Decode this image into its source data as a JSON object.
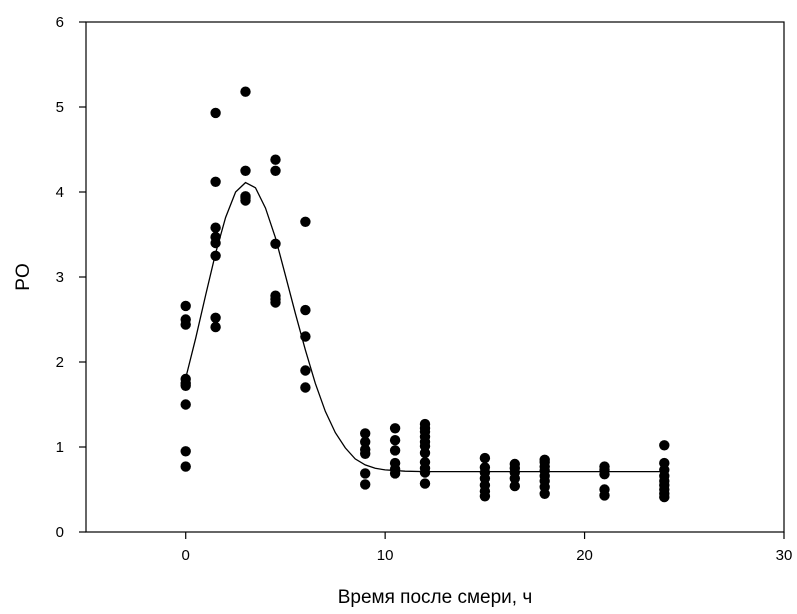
{
  "chart_data": {
    "type": "scatter",
    "title": "",
    "xlabel": "Время после смери, ч",
    "ylabel": "PO",
    "xlim": [
      -5,
      30
    ],
    "ylim": [
      0,
      6
    ],
    "xticks": [
      0,
      10,
      20,
      30
    ],
    "yticks": [
      0,
      1,
      2,
      3,
      4,
      5,
      6
    ],
    "grid": false,
    "legend": "none",
    "marker_color": "#000000",
    "line_color": "#000000",
    "series": [
      {
        "kind": "points",
        "points": [
          [
            0,
            0.77
          ],
          [
            0,
            0.95
          ],
          [
            0,
            1.5
          ],
          [
            0,
            1.72
          ],
          [
            0,
            1.75
          ],
          [
            0,
            1.8
          ],
          [
            0,
            2.44
          ],
          [
            0,
            2.5
          ],
          [
            0,
            2.66
          ],
          [
            1.5,
            2.41
          ],
          [
            1.5,
            2.52
          ],
          [
            1.5,
            3.25
          ],
          [
            1.5,
            3.4
          ],
          [
            1.5,
            3.47
          ],
          [
            1.5,
            3.58
          ],
          [
            1.5,
            4.12
          ],
          [
            1.5,
            4.93
          ],
          [
            3,
            3.9
          ],
          [
            3,
            3.93
          ],
          [
            3,
            3.95
          ],
          [
            3,
            4.25
          ],
          [
            3,
            5.18
          ],
          [
            4.5,
            2.7
          ],
          [
            4.5,
            2.74
          ],
          [
            4.5,
            2.78
          ],
          [
            4.5,
            3.39
          ],
          [
            4.5,
            4.25
          ],
          [
            4.5,
            4.38
          ],
          [
            6,
            1.7
          ],
          [
            6,
            1.9
          ],
          [
            6,
            2.3
          ],
          [
            6,
            2.61
          ],
          [
            6,
            3.65
          ],
          [
            9,
            0.56
          ],
          [
            9,
            0.69
          ],
          [
            9,
            0.92
          ],
          [
            9,
            0.97
          ],
          [
            9,
            1.06
          ],
          [
            9,
            1.16
          ],
          [
            10.5,
            0.69
          ],
          [
            10.5,
            0.74
          ],
          [
            10.5,
            0.81
          ],
          [
            10.5,
            0.96
          ],
          [
            10.5,
            1.08
          ],
          [
            10.5,
            1.22
          ],
          [
            12,
            0.57
          ],
          [
            12,
            0.7
          ],
          [
            12,
            0.75
          ],
          [
            12,
            0.82
          ],
          [
            12,
            0.93
          ],
          [
            12,
            1.01
          ],
          [
            12,
            1.06
          ],
          [
            12,
            1.12
          ],
          [
            12,
            1.18
          ],
          [
            12,
            1.22
          ],
          [
            12,
            1.27
          ],
          [
            15,
            0.42
          ],
          [
            15,
            0.48
          ],
          [
            15,
            0.55
          ],
          [
            15,
            0.63
          ],
          [
            15,
            0.7
          ],
          [
            15,
            0.76
          ],
          [
            15,
            0.87
          ],
          [
            16.5,
            0.54
          ],
          [
            16.5,
            0.63
          ],
          [
            16.5,
            0.7
          ],
          [
            16.5,
            0.75
          ],
          [
            16.5,
            0.8
          ],
          [
            18,
            0.45
          ],
          [
            18,
            0.53
          ],
          [
            18,
            0.6
          ],
          [
            18,
            0.66
          ],
          [
            18,
            0.72
          ],
          [
            18,
            0.77
          ],
          [
            18,
            0.82
          ],
          [
            18,
            0.85
          ],
          [
            21,
            0.43
          ],
          [
            21,
            0.5
          ],
          [
            21,
            0.68
          ],
          [
            21,
            0.73
          ],
          [
            21,
            0.77
          ],
          [
            24,
            0.41
          ],
          [
            24,
            0.45
          ],
          [
            24,
            0.5
          ],
          [
            24,
            0.55
          ],
          [
            24,
            0.6
          ],
          [
            24,
            0.66
          ],
          [
            24,
            0.73
          ],
          [
            24,
            0.81
          ],
          [
            24,
            1.02
          ]
        ]
      },
      {
        "kind": "line",
        "points": [
          [
            0,
            1.81
          ],
          [
            0.5,
            2.28
          ],
          [
            1,
            2.79
          ],
          [
            1.5,
            3.28
          ],
          [
            2,
            3.7
          ],
          [
            2.5,
            4.0
          ],
          [
            3,
            4.11
          ],
          [
            3.5,
            4.05
          ],
          [
            4,
            3.81
          ],
          [
            4.5,
            3.46
          ],
          [
            5,
            3.02
          ],
          [
            5.5,
            2.57
          ],
          [
            6,
            2.14
          ],
          [
            6.5,
            1.75
          ],
          [
            7,
            1.42
          ],
          [
            7.5,
            1.17
          ],
          [
            8,
            0.99
          ],
          [
            8.5,
            0.86
          ],
          [
            9,
            0.79
          ],
          [
            9.5,
            0.75
          ],
          [
            10,
            0.73
          ],
          [
            11,
            0.715
          ],
          [
            12,
            0.71
          ],
          [
            14,
            0.71
          ],
          [
            16,
            0.71
          ],
          [
            18,
            0.71
          ],
          [
            20,
            0.71
          ],
          [
            22,
            0.71
          ],
          [
            24,
            0.71
          ]
        ]
      }
    ]
  }
}
